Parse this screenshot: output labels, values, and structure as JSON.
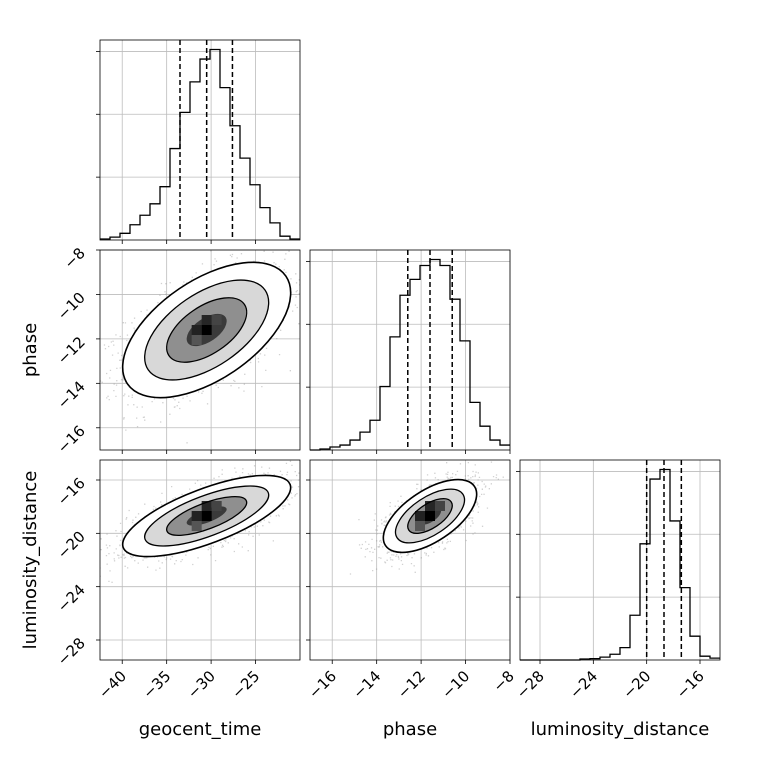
{
  "chart_data": {
    "type": "corner",
    "parameters": [
      "geocent_time",
      "phase",
      "luminosity_distance"
    ],
    "axis_labels": [
      "geocent_time",
      "phase",
      "luminosity_distance"
    ],
    "ranges": {
      "geocent_time": [
        -42.5,
        -20.0
      ],
      "phase": [
        -17.0,
        -8.0
      ],
      "luminosity_distance": [
        -29.5,
        -14.5
      ]
    },
    "ticks": {
      "geocent_time": [
        -40,
        -35,
        -30,
        -25
      ],
      "phase": [
        -16,
        -14,
        -12,
        -10,
        -8
      ],
      "luminosity_distance": [
        -28,
        -24,
        -20,
        -16
      ]
    },
    "tick_labels": {
      "geocent_time": [
        "−40",
        "−35",
        "−30",
        "−25"
      ],
      "phase": [
        "−16",
        "−14",
        "−12",
        "−10",
        "−8"
      ],
      "luminosity_distance": [
        "−28",
        "−24",
        "−20",
        "−16"
      ]
    },
    "quantiles": {
      "geocent_time": [
        -33.5,
        -30.5,
        -27.6
      ],
      "phase": [
        -12.6,
        -11.6,
        -10.6
      ],
      "luminosity_distance": [
        -20.0,
        -18.7,
        -17.4
      ]
    },
    "histograms": {
      "geocent_time": {
        "edges": [
          -42.5,
          -41.375,
          -40.25,
          -39.125,
          -38.0,
          -36.875,
          -35.75,
          -34.625,
          -33.5,
          -32.375,
          -31.25,
          -30.125,
          -29.0,
          -27.875,
          -26.75,
          -25.625,
          -24.5,
          -23.375,
          -22.25,
          -21.125,
          -20.0
        ],
        "counts": [
          0.5,
          1.5,
          3.5,
          8,
          13,
          19,
          28,
          48,
          67,
          83,
          95,
          100,
          80,
          60,
          43,
          29,
          17,
          9,
          2,
          0.5
        ]
      },
      "phase": {
        "edges": [
          -17.0,
          -16.55,
          -16.1,
          -15.65,
          -15.2,
          -14.75,
          -14.3,
          -13.85,
          -13.4,
          -12.95,
          -12.5,
          -12.05,
          -11.6,
          -11.15,
          -10.7,
          -10.25,
          -9.8,
          -9.35,
          -8.9,
          -8.45,
          -8.0
        ],
        "counts": [
          0,
          0.5,
          1.5,
          2.5,
          5,
          9,
          15,
          32,
          57,
          78,
          86,
          93,
          96,
          93,
          76,
          55,
          24,
          12,
          5,
          2.5
        ]
      },
      "luminosity_distance": {
        "edges": [
          -29.5,
          -28.75,
          -28.0,
          -27.25,
          -26.5,
          -25.75,
          -25.0,
          -24.25,
          -23.5,
          -22.75,
          -22.0,
          -21.25,
          -20.5,
          -19.75,
          -19.0,
          -18.25,
          -17.5,
          -16.75,
          -16.0,
          -15.25,
          -14.5
        ],
        "counts": [
          0,
          0,
          0,
          0,
          0,
          0,
          0.5,
          0.7,
          1.5,
          3,
          6.5,
          23.5,
          61,
          95,
          100,
          73,
          38,
          12.5,
          2,
          1
        ]
      }
    },
    "pairs": [
      {
        "x": "geocent_time",
        "y": "phase",
        "mean": [
          -30.5,
          -11.6
        ],
        "sd": [
          4.5,
          1.45
        ],
        "rho": 0.55
      },
      {
        "x": "geocent_time",
        "y": "luminosity_distance",
        "mean": [
          -30.5,
          -18.7
        ],
        "sd": [
          4.5,
          1.45
        ],
        "rho": 0.7
      },
      {
        "x": "phase",
        "y": "luminosity_distance",
        "mean": [
          -11.6,
          -18.7
        ],
        "sd": [
          1.0,
          1.3
        ],
        "rho": 0.6
      }
    ]
  }
}
